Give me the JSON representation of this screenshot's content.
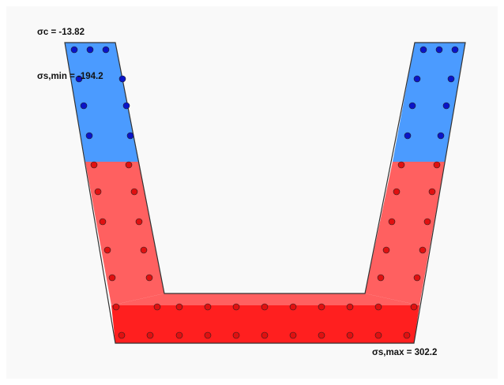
{
  "labels": {
    "sigma_c": "σc = -13.82",
    "sigma_s_min": "σs,min = -194.2",
    "sigma_s_max": "σs,max = 302.2"
  },
  "colors": {
    "compression_zone": "#4b9bff",
    "tension_zone_light": "#ff6060",
    "tension_zone_dark": "#ff1f1f",
    "bar_compression": "#0a14c8",
    "bar_tension": "#e01010",
    "outline": "#333333"
  },
  "reinforcement": {
    "compression_bars": 20,
    "tension_bars": 56
  }
}
